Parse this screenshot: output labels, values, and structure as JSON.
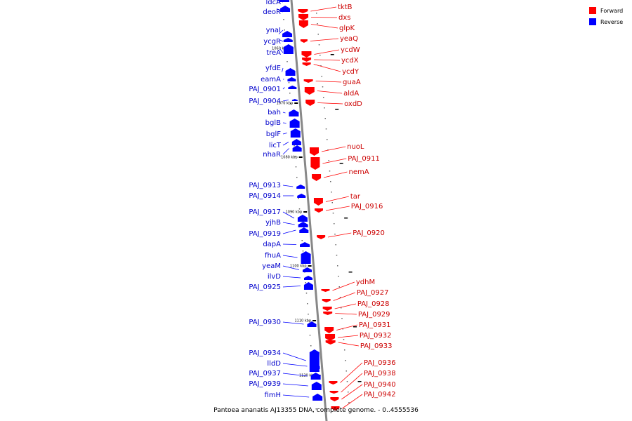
{
  "caption": "Pantoea ananatis AJ13355 DNA, complete genome. - 0..4555536",
  "legend": [
    {
      "key": "forward",
      "label": "Forward",
      "color": "#ff0000"
    },
    {
      "key": "reverse",
      "label": "Reverse",
      "color": "#0000ff"
    }
  ],
  "colors": {
    "forward": "#ff0000",
    "reverse": "#0000ff",
    "forward_text": "#cc0000",
    "reverse_text": "#0000cc",
    "backbone": "#888888"
  },
  "ticks": [
    "1060 kbp",
    "1070 kbp",
    "1080 kbp",
    "1090 kbp",
    "1100 kbp",
    "1110 kbp",
    "1120 kbp"
  ],
  "reverse_genes": [
    "ldcA",
    "deoR",
    "ynaI",
    "ycgR",
    "treA",
    "yfdE",
    "eamA",
    "PAJ_0901",
    "PAJ_0904",
    "bah",
    "bglB",
    "bglF",
    "licT",
    "nhaR",
    "PAJ_0913",
    "PAJ_0914",
    "PAJ_0917",
    "yjhB",
    "PAJ_0919",
    "dapA",
    "fhuA",
    "yeaM",
    "ilvD",
    "PAJ_0925",
    "PAJ_0930",
    "PAJ_0934",
    "lldD",
    "PAJ_0937",
    "PAJ_0939",
    "fimH"
  ],
  "forward_genes": [
    "tktB",
    "dxs",
    "glpK",
    "yeaQ",
    "ycdW",
    "ycdX",
    "ycdY",
    "guaA",
    "aldA",
    "oxdD",
    "nuoL",
    "PAJ_0911",
    "nemA",
    "tar",
    "PAJ_0916",
    "PAJ_0920",
    "ydhM",
    "PAJ_0927",
    "PAJ_0928",
    "PAJ_0929",
    "PAJ_0931",
    "PAJ_0932",
    "PAJ_0933",
    "PAJ_0936",
    "PAJ_0938",
    "PAJ_0940",
    "PAJ_0942"
  ]
}
